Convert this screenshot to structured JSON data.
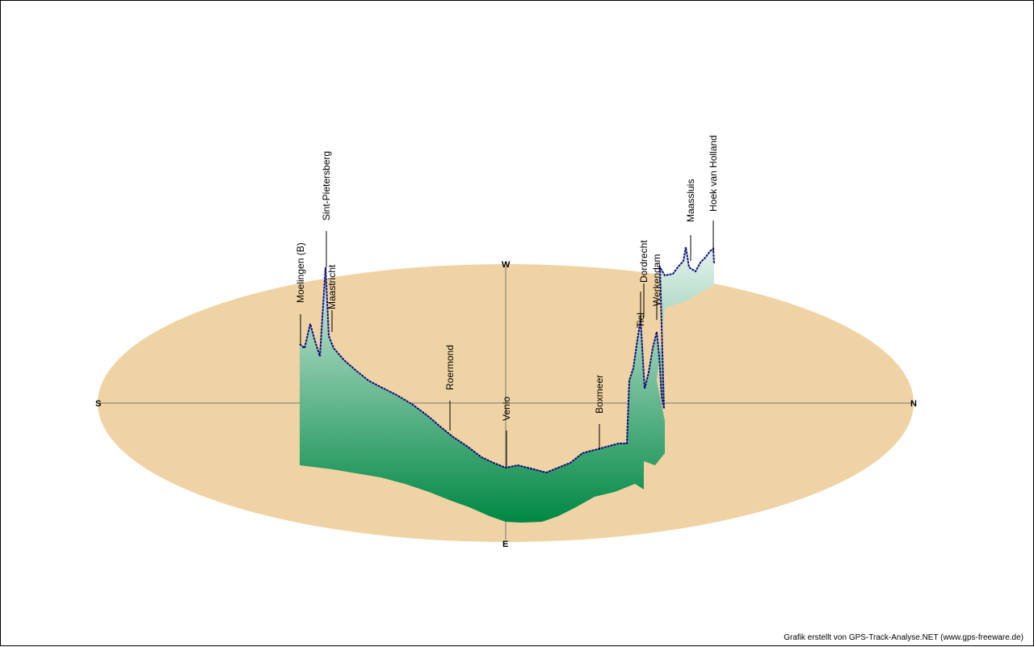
{
  "colors": {
    "ground": "#f0d3a5",
    "profile_top": "#e6f3ee",
    "profile_bottom": "#008844",
    "track": "#0a0a7a",
    "axis": "#777777"
  },
  "compass": {
    "south": "S",
    "north": "N",
    "west": "W",
    "east": "E"
  },
  "credit": "Grafik erstellt von GPS-Track-Analyse.NET (www.gps-freeware.de)",
  "chart_data": {
    "type": "area",
    "title": "",
    "description": "3D perspective elevation profile of a GPS track along the Maas, plotted over a compass ground ellipse",
    "places": [
      {
        "name": "Moelingen (B)"
      },
      {
        "name": "Sint-Pietersberg"
      },
      {
        "name": "Maastricht"
      },
      {
        "name": "Roermond"
      },
      {
        "name": "Venlo"
      },
      {
        "name": "Boxmeer"
      },
      {
        "name": "Tiel"
      },
      {
        "name": "Dordrecht"
      },
      {
        "name": "Werkendam"
      },
      {
        "name": "Maassluis"
      },
      {
        "name": "Hoek van Holland"
      }
    ]
  }
}
